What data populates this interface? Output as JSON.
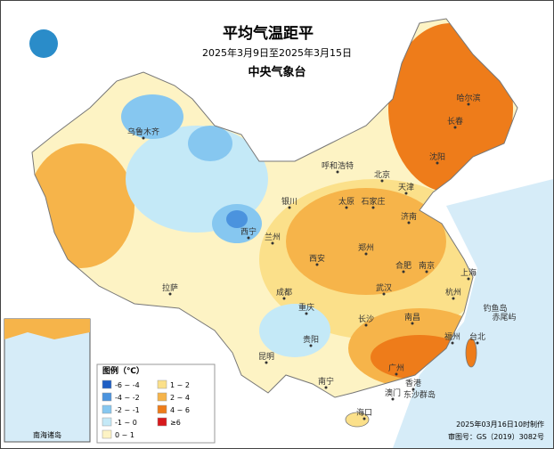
{
  "header": {
    "title": "平均气温距平",
    "subtitle": "2025年3月9日至2025年3月15日",
    "agency": "中央气象台"
  },
  "cities": [
    "哈尔滨",
    "长春",
    "沈阳",
    "北京",
    "天津",
    "呼和浩特",
    "石家庄",
    "太原",
    "济南",
    "银川",
    "兰州",
    "西宁",
    "郑州",
    "西安",
    "合肥",
    "南京",
    "上海",
    "杭州",
    "武汉",
    "成都",
    "重庆",
    "长沙",
    "南昌",
    "贵阳",
    "昆明",
    "福州",
    "台北",
    "广州",
    "南宁",
    "香港",
    "澳门",
    "海口",
    "拉萨",
    "乌鲁木齐",
    "东沙群岛",
    "赤尾屿",
    "钓鱼岛"
  ],
  "legend": {
    "title": "图例（℃）",
    "items": [
      {
        "label": "-6 ~ -4",
        "color": "#1f5fc4"
      },
      {
        "label": "1 ~ 2",
        "color": "#fbe08a"
      },
      {
        "label": "-4 ~ -2",
        "color": "#4b93de"
      },
      {
        "label": "2 ~ 4",
        "color": "#f6b44a"
      },
      {
        "label": "-2 ~ -1",
        "color": "#86c7f0"
      },
      {
        "label": "4 ~ 6",
        "color": "#ee7c1a"
      },
      {
        "label": "-1 ~ 0",
        "color": "#c4e9f7"
      },
      {
        "label": "≥6",
        "color": "#d7191c"
      },
      {
        "label": "0 ~ 1",
        "color": "#fdf3c4"
      }
    ]
  },
  "inset": {
    "label": "南海诸岛"
  },
  "footer": {
    "made": "2025年03月16日10时制作",
    "approval": "审图号：GS（2019）3082号"
  }
}
